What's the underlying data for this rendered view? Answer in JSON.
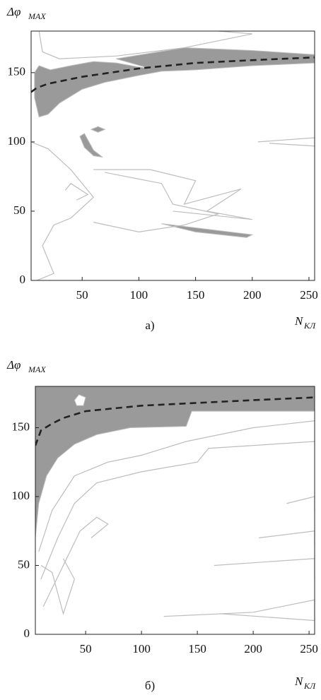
{
  "chart_data": [
    {
      "type": "contour",
      "caption": "а)",
      "ylabel": "Δφ",
      "ylabel_sub": "MAX",
      "xlabel": "N",
      "xlabel_sub": "КЛ",
      "xlim": [
        5,
        255
      ],
      "ylim": [
        0,
        180
      ],
      "xticks": [
        50,
        100,
        150,
        200,
        250
      ],
      "yticks": [
        0,
        50,
        100,
        150
      ],
      "line": {
        "color": "#222222",
        "x": [
          5,
          10,
          20,
          50,
          100,
          150,
          200,
          255
        ],
        "y": [
          136,
          139,
          142,
          147,
          153,
          157,
          159,
          161
        ]
      },
      "fill_color": "#9a9a9a",
      "contour_color": "#bdbdbd",
      "regions": [
        {
          "x": [
            8,
            12,
            22,
            40,
            60,
            80,
            100,
            110,
            80,
            140,
            200,
            255,
            255,
            200,
            150,
            120,
            100,
            70,
            50,
            30,
            20,
            12,
            8
          ],
          "y": [
            150,
            155,
            152,
            155,
            158,
            157,
            154,
            153,
            160,
            168,
            166,
            163,
            157,
            155,
            152,
            151,
            148,
            143,
            138,
            128,
            120,
            118,
            132
          ]
        },
        {
          "x": [
            58,
            64,
            70,
            64
          ],
          "y": [
            109,
            111,
            109,
            107
          ]
        },
        {
          "x": [
            48,
            52,
            60,
            68,
            60,
            52
          ],
          "y": [
            104,
            106,
            94,
            89,
            90,
            96
          ]
        },
        {
          "x": [
            120,
            160,
            200,
            195,
            150
          ],
          "y": [
            41,
            37,
            33,
            31,
            35
          ]
        }
      ],
      "contours": [
        {
          "x": [
            12,
            15,
            30,
            80,
            140,
            200,
            170
          ],
          "y": [
            180,
            165,
            160,
            162,
            168,
            178,
            180
          ]
        },
        {
          "x": [
            5,
            20,
            40,
            60,
            40,
            25,
            15,
            25,
            10
          ],
          "y": [
            100,
            95,
            80,
            60,
            45,
            40,
            25,
            5,
            0
          ]
        },
        {
          "x": [
            60,
            110,
            150,
            140,
            190,
            160,
            200,
            130
          ],
          "y": [
            80,
            80,
            72,
            55,
            66,
            50,
            44,
            50
          ]
        },
        {
          "x": [
            70,
            120,
            130,
            170,
            140,
            100,
            60
          ],
          "y": [
            78,
            70,
            55,
            48,
            40,
            35,
            42
          ]
        },
        {
          "x": [
            205,
            255,
            255,
            215
          ],
          "y": [
            100,
            103,
            97,
            99
          ]
        },
        {
          "x": [
            35,
            40,
            55,
            45
          ],
          "y": [
            65,
            70,
            62,
            58
          ]
        }
      ]
    },
    {
      "type": "contour",
      "caption": "б)",
      "ylabel": "Δφ",
      "ylabel_sub": "MAX",
      "xlabel": "N",
      "xlabel_sub": "КЛ",
      "xlim": [
        5,
        255
      ],
      "ylim": [
        0,
        180
      ],
      "xticks": [
        50,
        100,
        150,
        200,
        250
      ],
      "yticks": [
        0,
        50,
        100,
        150
      ],
      "line": {
        "color": "#222222",
        "x": [
          5,
          10,
          20,
          30,
          50,
          100,
          150,
          200,
          255
        ],
        "y": [
          137,
          148,
          153,
          157,
          162,
          166,
          168,
          170,
          172
        ]
      },
      "fill_color": "#9a9a9a",
      "contour_color": "#bdbdbd",
      "regions": [
        {
          "x": [
            5,
            8,
            15,
            25,
            40,
            60,
            90,
            140,
            145,
            255,
            255,
            5
          ],
          "y": [
            70,
            95,
            115,
            128,
            138,
            145,
            150,
            151,
            162,
            162,
            180,
            180
          ]
        },
        {
          "x": [
            40,
            44,
            50,
            48,
            42
          ],
          "y": [
            170,
            174,
            172,
            166,
            166
          ]
        }
      ],
      "contours": [
        {
          "x": [
            8,
            20,
            40,
            70,
            100,
            140,
            200,
            255
          ],
          "y": [
            60,
            90,
            115,
            125,
            130,
            140,
            150,
            155
          ]
        },
        {
          "x": [
            10,
            25,
            40,
            60,
            100,
            150,
            160,
            255
          ],
          "y": [
            40,
            70,
            95,
            110,
            118,
            125,
            135,
            140
          ]
        },
        {
          "x": [
            12,
            30,
            45,
            60,
            70,
            55
          ],
          "y": [
            20,
            50,
            75,
            85,
            80,
            70
          ]
        },
        {
          "x": [
            10,
            20,
            25,
            30,
            40,
            30
          ],
          "y": [
            50,
            45,
            30,
            15,
            40,
            55
          ]
        },
        {
          "x": [
            120,
            200,
            255,
            255,
            170
          ],
          "y": [
            13,
            16,
            25,
            10,
            15
          ]
        },
        {
          "x": [
            165,
            255,
            255
          ],
          "y": [
            50,
            55,
            40
          ]
        },
        {
          "x": [
            205,
            255,
            255
          ],
          "y": [
            70,
            75,
            65
          ]
        },
        {
          "x": [
            230,
            255,
            255
          ],
          "y": [
            95,
            100,
            90
          ]
        }
      ]
    }
  ]
}
